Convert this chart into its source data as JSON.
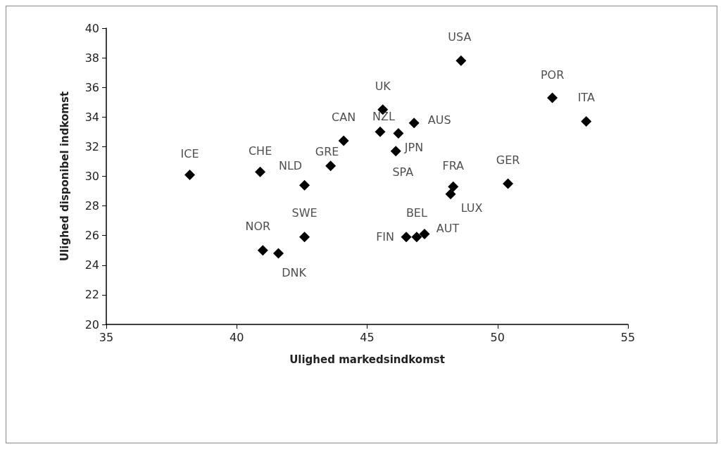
{
  "chart_data": {
    "type": "scatter",
    "xlabel": "Ulighed markedsindkomst",
    "ylabel": "Ulighed disponibel indkomst",
    "xlim": [
      35,
      55
    ],
    "xticks": [
      35,
      40,
      45,
      50,
      55
    ],
    "ylim": [
      20,
      40
    ],
    "yticks": [
      20,
      22,
      24,
      26,
      28,
      30,
      32,
      34,
      36,
      38,
      40
    ],
    "grid": false,
    "marker": "diamond",
    "series": [
      {
        "color": "#000000",
        "x": [
          38.2,
          40.9,
          42.6,
          43.6,
          44.1,
          41.0,
          41.6,
          42.6,
          45.6,
          45.5,
          46.2,
          46.8,
          46.1,
          48.6,
          52.1,
          53.4,
          50.4,
          48.3,
          48.2,
          46.5,
          46.9,
          47.2
        ],
        "values": [
          30.1,
          30.3,
          29.4,
          30.7,
          32.4,
          25.0,
          24.8,
          25.9,
          34.5,
          33.0,
          32.9,
          33.6,
          31.7,
          37.8,
          35.3,
          33.7,
          29.5,
          29.3,
          28.8,
          25.9,
          25.9,
          26.1
        ]
      }
    ],
    "annotations": [
      {
        "text": "ICE",
        "x": 38.2,
        "y": 30.1
      },
      {
        "text": "CHE",
        "x": 40.9,
        "y": 30.3
      },
      {
        "text": "NLD",
        "x": 42.6,
        "y": 29.4
      },
      {
        "text": "GRE",
        "x": 43.6,
        "y": 30.7
      },
      {
        "text": "CAN",
        "x": 44.1,
        "y": 32.4
      },
      {
        "text": "NOR",
        "x": 41.0,
        "y": 25.0
      },
      {
        "text": "DNK",
        "x": 41.6,
        "y": 24.8
      },
      {
        "text": "SWE",
        "x": 42.6,
        "y": 25.9
      },
      {
        "text": "UK",
        "x": 45.6,
        "y": 34.5
      },
      {
        "text": "NZL",
        "x": 45.5,
        "y": 33.0
      },
      {
        "text": "JPN",
        "x": 46.2,
        "y": 32.9
      },
      {
        "text": "AUS",
        "x": 46.8,
        "y": 33.6
      },
      {
        "text": "SPA",
        "x": 46.1,
        "y": 31.7
      },
      {
        "text": "USA",
        "x": 48.6,
        "y": 37.8
      },
      {
        "text": "POR",
        "x": 52.1,
        "y": 35.3
      },
      {
        "text": "ITA",
        "x": 53.4,
        "y": 33.7
      },
      {
        "text": "GER",
        "x": 50.4,
        "y": 29.5
      },
      {
        "text": "FRA",
        "x": 48.3,
        "y": 29.3
      },
      {
        "text": "LUX",
        "x": 48.2,
        "y": 28.8
      },
      {
        "text": "FIN",
        "x": 46.5,
        "y": 25.9
      },
      {
        "text": "BEL",
        "x": 46.9,
        "y": 25.9
      },
      {
        "text": "AUT",
        "x": 47.2,
        "y": 26.1
      }
    ]
  }
}
